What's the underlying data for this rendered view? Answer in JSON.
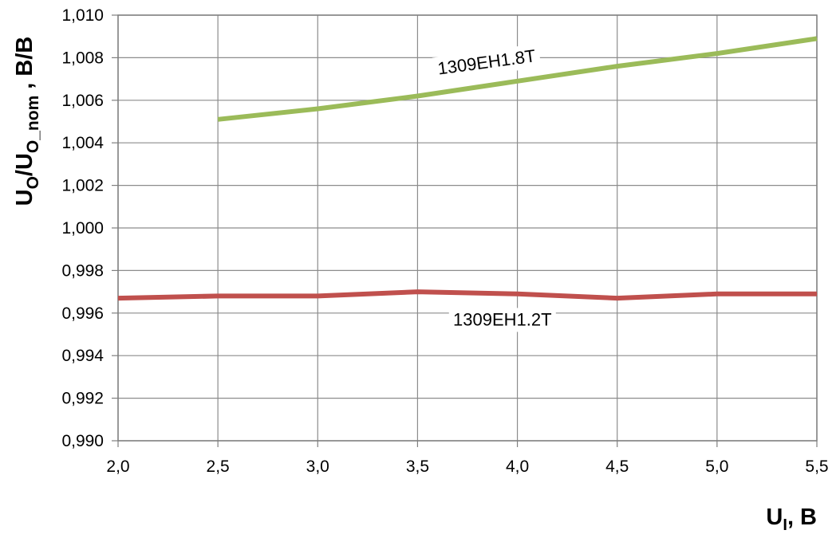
{
  "chart_data": {
    "type": "line",
    "x": [
      2.0,
      2.5,
      3.0,
      3.5,
      4.0,
      4.5,
      5.0,
      5.5
    ],
    "xlim": [
      2.0,
      5.5
    ],
    "ylim": [
      0.99,
      1.01
    ],
    "x_ticks": [
      "2,0",
      "2,5",
      "3,0",
      "3,5",
      "4,0",
      "4,5",
      "5,0",
      "5,5"
    ],
    "y_ticks": [
      "0,990",
      "0,992",
      "0,994",
      "0,996",
      "0,998",
      "1,000",
      "1,002",
      "1,004",
      "1,006",
      "1,008",
      "1,010"
    ],
    "grid": true,
    "xlabel": {
      "main": "U",
      "sub": "I",
      "rest": ", B"
    },
    "ylabel": {
      "u1": "U",
      "sub1": "O",
      "slash": "/U",
      "sub2": "O_nom",
      "rest": " , B/B"
    },
    "series": [
      {
        "name": "1309EH1.8T",
        "color": "#9bbb59",
        "x": [
          2.5,
          3.0,
          3.5,
          4.0,
          4.5,
          5.0,
          5.5
        ],
        "values": [
          1.0051,
          1.0056,
          1.0062,
          1.0069,
          1.0076,
          1.0082,
          1.0089
        ]
      },
      {
        "name": "1309EH1.2T",
        "color": "#c0504d",
        "x": [
          2.0,
          2.5,
          3.0,
          3.5,
          4.0,
          4.5,
          5.0,
          5.5
        ],
        "values": [
          0.9967,
          0.9968,
          0.9968,
          0.997,
          0.9969,
          0.9967,
          0.9969,
          0.9969
        ]
      }
    ]
  }
}
